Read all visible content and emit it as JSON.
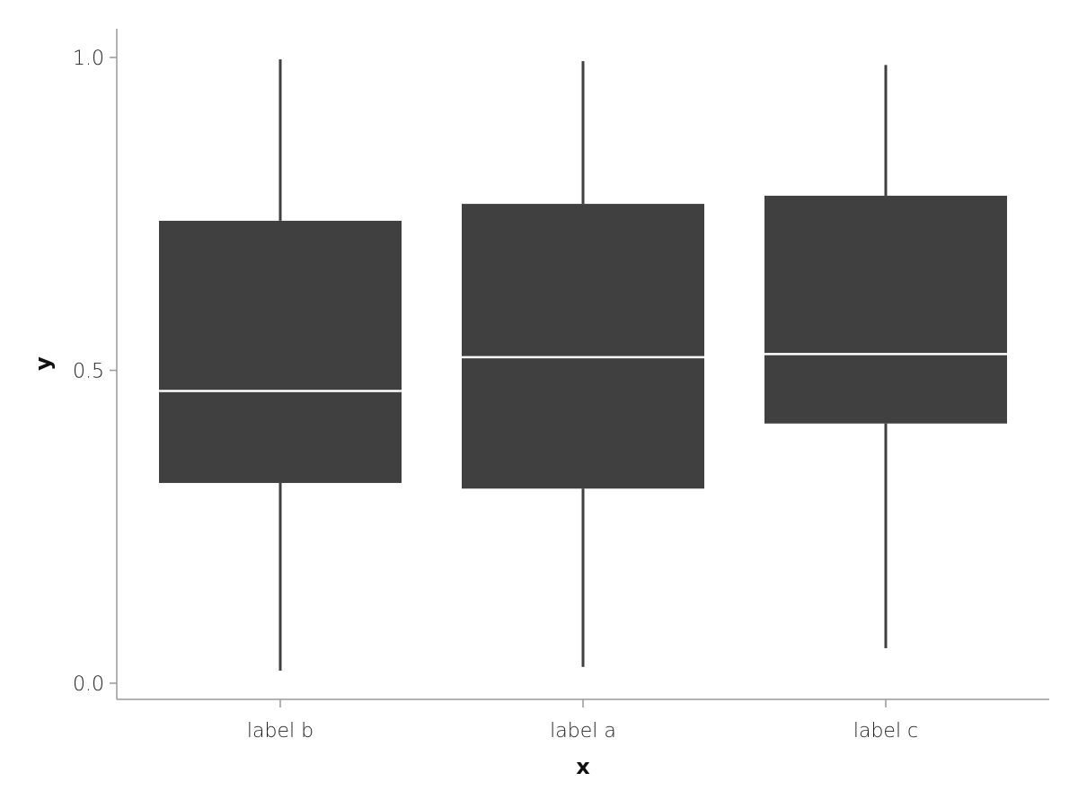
{
  "chart_data": {
    "type": "box",
    "title": "",
    "xlabel": "x",
    "ylabel": "y",
    "ylim": [
      0.0,
      1.0
    ],
    "yticks": [
      "0.0",
      "0.5",
      "1.0"
    ],
    "grid": false,
    "legend": "none",
    "box_color": "#404040",
    "median_color": "#ffffff",
    "categories": [
      "label b",
      "label a",
      "label c"
    ],
    "boxes": [
      {
        "category": "label b",
        "min": 0.02,
        "q1": 0.32,
        "median": 0.467,
        "q3": 0.739,
        "max": 0.997
      },
      {
        "category": "label a",
        "min": 0.026,
        "q1": 0.311,
        "median": 0.521,
        "q3": 0.766,
        "max": 0.994
      },
      {
        "category": "label c",
        "min": 0.056,
        "q1": 0.415,
        "median": 0.526,
        "q3": 0.779,
        "max": 0.988
      }
    ]
  }
}
